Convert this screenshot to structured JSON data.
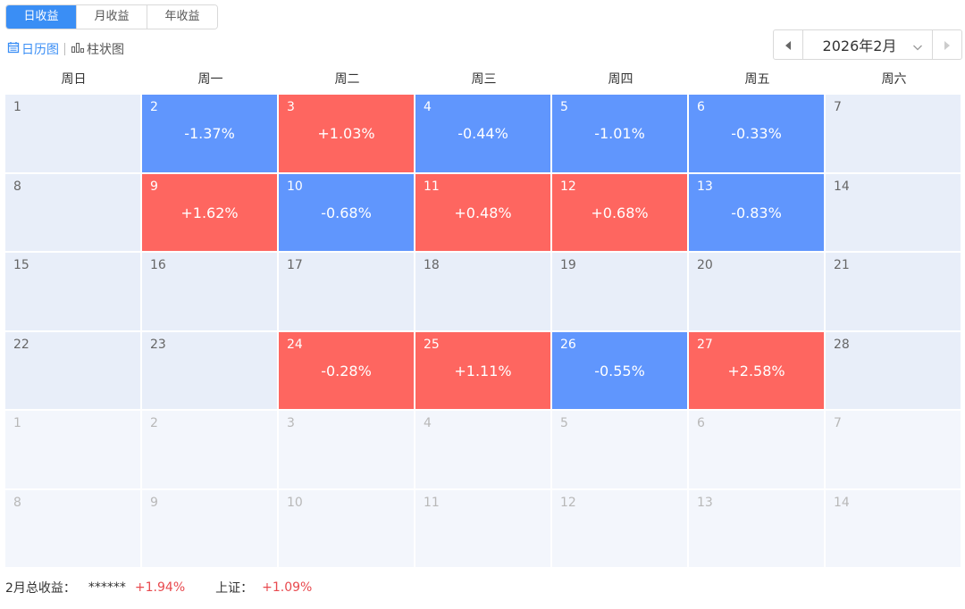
{
  "tabs": [
    {
      "label": "日收益",
      "active": true
    },
    {
      "label": "月收益",
      "active": false
    },
    {
      "label": "年收益",
      "active": false
    }
  ],
  "views": {
    "calendar": "日历图",
    "bar": "柱状图"
  },
  "picker": {
    "month": "2026年2月"
  },
  "weekdays": [
    "周日",
    "周一",
    "周二",
    "周三",
    "周四",
    "周五",
    "周六"
  ],
  "calendar": {
    "rows": [
      [
        {
          "day": "1",
          "pct": ""
        },
        {
          "day": "2",
          "pct": "-1.37%"
        },
        {
          "day": "3",
          "pct": "+1.03%"
        },
        {
          "day": "4",
          "pct": "-0.44%"
        },
        {
          "day": "5",
          "pct": "-1.01%"
        },
        {
          "day": "6",
          "pct": "-0.33%"
        },
        {
          "day": "7",
          "pct": ""
        }
      ],
      [
        {
          "day": "8",
          "pct": ""
        },
        {
          "day": "9",
          "pct": "+1.62%"
        },
        {
          "day": "10",
          "pct": "-0.68%"
        },
        {
          "day": "11",
          "pct": "+0.48%"
        },
        {
          "day": "12",
          "pct": "+0.68%"
        },
        {
          "day": "13",
          "pct": "-0.83%"
        },
        {
          "day": "14",
          "pct": ""
        }
      ],
      [
        {
          "day": "15",
          "pct": ""
        },
        {
          "day": "16",
          "pct": ""
        },
        {
          "day": "17",
          "pct": ""
        },
        {
          "day": "18",
          "pct": ""
        },
        {
          "day": "19",
          "pct": ""
        },
        {
          "day": "20",
          "pct": ""
        },
        {
          "day": "21",
          "pct": ""
        }
      ],
      [
        {
          "day": "22",
          "pct": ""
        },
        {
          "day": "23",
          "pct": ""
        },
        {
          "day": "24",
          "pct": "-0.28%",
          "color": "up"
        },
        {
          "day": "25",
          "pct": "+1.11%"
        },
        {
          "day": "26",
          "pct": "-0.55%"
        },
        {
          "day": "27",
          "pct": "+2.58%"
        },
        {
          "day": "28",
          "pct": ""
        }
      ],
      [
        {
          "day": "1",
          "pct": "",
          "future": true
        },
        {
          "day": "2",
          "pct": "",
          "future": true
        },
        {
          "day": "3",
          "pct": "",
          "future": true
        },
        {
          "day": "4",
          "pct": "",
          "future": true
        },
        {
          "day": "5",
          "pct": "",
          "future": true
        },
        {
          "day": "6",
          "pct": "",
          "future": true
        },
        {
          "day": "7",
          "pct": "",
          "future": true
        }
      ],
      [
        {
          "day": "8",
          "pct": "",
          "future": true
        },
        {
          "day": "9",
          "pct": "",
          "future": true
        },
        {
          "day": "10",
          "pct": "",
          "future": true
        },
        {
          "day": "11",
          "pct": "",
          "future": true
        },
        {
          "day": "12",
          "pct": "",
          "future": true
        },
        {
          "day": "13",
          "pct": "",
          "future": true
        },
        {
          "day": "14",
          "pct": "",
          "future": true
        }
      ]
    ]
  },
  "footer": {
    "total_label": "2月总收益：",
    "total_masked": "******",
    "total_value": "+1.94%",
    "index_label": "上证：",
    "index_value": "+1.09%"
  },
  "colors": {
    "accent": "#3a8ef5",
    "up": "#fe6660",
    "down": "#6096fd",
    "cell": "#e8eef9",
    "future_cell": "#f3f6fc",
    "positive_text": "#e8494e"
  }
}
